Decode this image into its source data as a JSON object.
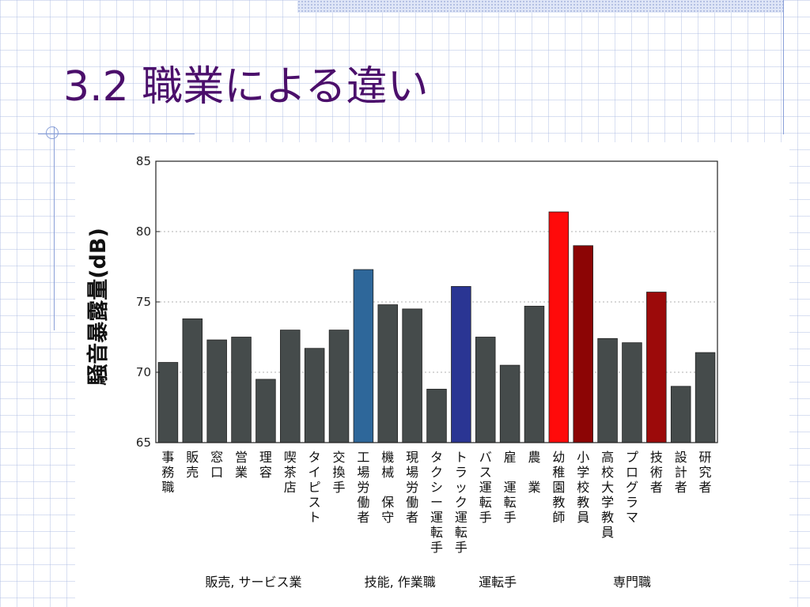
{
  "slide": {
    "title": "3.2 職業による違い"
  },
  "chart_data": {
    "type": "bar",
    "title": "",
    "xlabel": "",
    "ylabel": "騒音暴露量(dB)",
    "ylim": [
      65,
      85
    ],
    "yticks": [
      "65",
      "70",
      "75",
      "80",
      "85"
    ],
    "grid": "horizontal dotted",
    "categories": [
      "事務職",
      "販売",
      "窓口",
      "営業",
      "理容",
      "喫茶店",
      "タイピスト",
      "交換手",
      "工場労働者",
      "機械 保守",
      "現場労働者",
      "タクシー運転手",
      "トラック運転手",
      "バス運転手",
      "雇 運転手",
      "農 業",
      "幼稚園教師",
      "小学校教員",
      "高校大学教員",
      "プログラマ",
      "技術者",
      "設計者",
      "研究者"
    ],
    "values": [
      70.7,
      73.8,
      72.3,
      72.5,
      69.5,
      73.0,
      71.7,
      73.0,
      77.3,
      74.8,
      74.5,
      68.8,
      76.1,
      72.5,
      70.5,
      74.7,
      81.4,
      79.0,
      72.4,
      72.1,
      75.7,
      69.0,
      71.4
    ],
    "bar_colors": [
      "#454b4b",
      "#454b4b",
      "#454b4b",
      "#454b4b",
      "#454b4b",
      "#454b4b",
      "#454b4b",
      "#454b4b",
      "#2e679a",
      "#454b4b",
      "#454b4b",
      "#454b4b",
      "#2a3593",
      "#454b4b",
      "#454b4b",
      "#454b4b",
      "#ff0a0a",
      "#8c0505",
      "#454b4b",
      "#454b4b",
      "#9c0a0a",
      "#454b4b",
      "#454b4b"
    ],
    "groups": [
      {
        "label": "販売, サービス業",
        "from": 0,
        "to": 7
      },
      {
        "label": "技能, 作業職",
        "from": 8,
        "to": 11
      },
      {
        "label": "運転手",
        "from": 12,
        "to": 15
      },
      {
        "label": "専門職",
        "from": 16,
        "to": 22
      }
    ]
  }
}
